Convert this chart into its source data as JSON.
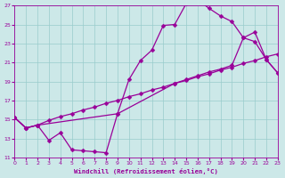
{
  "xlabel": "Windchill (Refroidissement éolien,°C)",
  "bg_color": "#cce8e8",
  "grid_color": "#99cccc",
  "line_color": "#990099",
  "line1_x": [
    0,
    1,
    2,
    3,
    4,
    5,
    6,
    7,
    8,
    9,
    10,
    11,
    12,
    13,
    14,
    15,
    16,
    17,
    18,
    19,
    20,
    21,
    22,
    23
  ],
  "line1_y": [
    15.2,
    14.1,
    14.4,
    12.8,
    13.6,
    11.8,
    11.7,
    11.6,
    11.5,
    15.6,
    19.2,
    21.2,
    22.3,
    24.9,
    25.0,
    27.2,
    27.6,
    26.7,
    25.9,
    25.3,
    23.6,
    23.2,
    21.3,
    19.9
  ],
  "line2_x": [
    0,
    1,
    2,
    3,
    4,
    5,
    6,
    7,
    8,
    9,
    10,
    11,
    12,
    13,
    14,
    15,
    16,
    17,
    18,
    19,
    20,
    21,
    22,
    23
  ],
  "line2_y": [
    15.2,
    14.1,
    14.4,
    14.9,
    15.3,
    15.6,
    16.0,
    16.3,
    16.7,
    17.0,
    17.4,
    17.7,
    18.1,
    18.4,
    18.8,
    19.1,
    19.5,
    19.8,
    20.2,
    20.5,
    20.9,
    21.2,
    21.6,
    21.9
  ],
  "line3_x": [
    0,
    1,
    2,
    9,
    14,
    15,
    16,
    17,
    18,
    19,
    20,
    21,
    22,
    23
  ],
  "line3_y": [
    15.2,
    14.1,
    14.4,
    15.6,
    18.8,
    19.2,
    19.6,
    20.0,
    20.3,
    20.7,
    23.6,
    24.2,
    21.3,
    19.9
  ],
  "xlim": [
    0,
    23
  ],
  "ylim": [
    11,
    27
  ],
  "xticks": [
    0,
    1,
    2,
    3,
    4,
    5,
    6,
    7,
    8,
    9,
    10,
    11,
    12,
    13,
    14,
    15,
    16,
    17,
    18,
    19,
    20,
    21,
    22,
    23
  ],
  "yticks": [
    11,
    13,
    15,
    17,
    19,
    21,
    23,
    25,
    27
  ],
  "markersize": 2.5,
  "linewidth": 0.9
}
